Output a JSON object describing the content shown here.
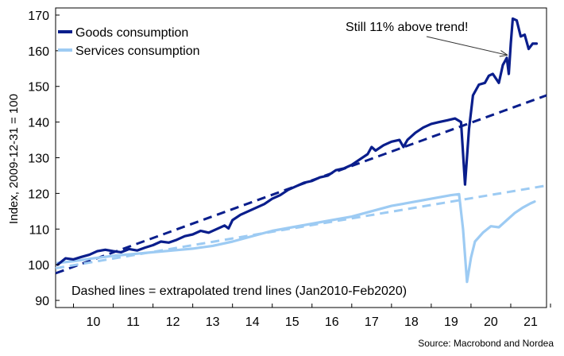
{
  "chart_data": {
    "type": "line",
    "title": "",
    "ylabel": "Index, 2009-12-31 = 100",
    "xlabel": "",
    "ylim": [
      88,
      172
    ],
    "yticks": [
      90,
      100,
      110,
      120,
      130,
      140,
      150,
      160,
      170
    ],
    "xlim": [
      2009.55,
      2021.9
    ],
    "xtick_positions": [
      2010,
      2011,
      2012,
      2013,
      2014,
      2015,
      2016,
      2017,
      2018,
      2019,
      2020,
      2021
    ],
    "xtick_labels": [
      "10",
      "11",
      "12",
      "13",
      "14",
      "15",
      "16",
      "17",
      "18",
      "19",
      "20",
      "21"
    ],
    "grid": false,
    "legend_position": "top-left",
    "colors": {
      "goods": "#0a1e8c",
      "services": "#9dcbf3"
    },
    "series": [
      {
        "name": "Goods consumption",
        "style": "solid",
        "color": "#0a1e8c",
        "points": [
          [
            2009.6,
            100
          ],
          [
            2009.8,
            101.8
          ],
          [
            2010.0,
            101.5
          ],
          [
            2010.2,
            102.2
          ],
          [
            2010.4,
            102.8
          ],
          [
            2010.6,
            103.8
          ],
          [
            2010.8,
            104.2
          ],
          [
            2011.0,
            103.8
          ],
          [
            2011.2,
            103.5
          ],
          [
            2011.4,
            104.4
          ],
          [
            2011.6,
            104.0
          ],
          [
            2011.8,
            104.8
          ],
          [
            2012.0,
            105.5
          ],
          [
            2012.2,
            106.5
          ],
          [
            2012.4,
            106.2
          ],
          [
            2012.6,
            107.0
          ],
          [
            2012.8,
            108.0
          ],
          [
            2013.0,
            108.5
          ],
          [
            2013.2,
            109.5
          ],
          [
            2013.4,
            109.0
          ],
          [
            2013.6,
            110.0
          ],
          [
            2013.8,
            111.0
          ],
          [
            2013.9,
            110.2
          ],
          [
            2014.0,
            112.5
          ],
          [
            2014.2,
            114.0
          ],
          [
            2014.4,
            115.0
          ],
          [
            2014.6,
            116.0
          ],
          [
            2014.8,
            117.0
          ],
          [
            2015.0,
            118.5
          ],
          [
            2015.2,
            119.5
          ],
          [
            2015.4,
            121.0
          ],
          [
            2015.6,
            122.0
          ],
          [
            2015.8,
            123.0
          ],
          [
            2016.0,
            123.5
          ],
          [
            2016.2,
            124.5
          ],
          [
            2016.4,
            125.0
          ],
          [
            2016.6,
            126.5
          ],
          [
            2016.8,
            127.0
          ],
          [
            2017.0,
            128.0
          ],
          [
            2017.2,
            129.5
          ],
          [
            2017.4,
            131.0
          ],
          [
            2017.5,
            133.0
          ],
          [
            2017.6,
            132.0
          ],
          [
            2017.8,
            133.5
          ],
          [
            2018.0,
            134.5
          ],
          [
            2018.2,
            135.0
          ],
          [
            2018.3,
            133.0
          ],
          [
            2018.4,
            135.0
          ],
          [
            2018.6,
            137.0
          ],
          [
            2018.8,
            138.5
          ],
          [
            2019.0,
            139.5
          ],
          [
            2019.2,
            140.0
          ],
          [
            2019.4,
            140.5
          ],
          [
            2019.6,
            141.0
          ],
          [
            2019.75,
            140.0
          ],
          [
            2019.85,
            122.5
          ],
          [
            2019.95,
            138.0
          ],
          [
            2020.05,
            147.5
          ],
          [
            2020.2,
            150.5
          ],
          [
            2020.35,
            151.0
          ],
          [
            2020.45,
            153.0
          ],
          [
            2020.55,
            153.5
          ],
          [
            2020.7,
            151.0
          ],
          [
            2020.8,
            156.0
          ],
          [
            2020.9,
            158.0
          ],
          [
            2020.95,
            153.5
          ],
          [
            2021.0,
            162.0
          ],
          [
            2021.05,
            169.0
          ],
          [
            2021.15,
            168.5
          ],
          [
            2021.25,
            164.0
          ],
          [
            2021.35,
            164.5
          ],
          [
            2021.45,
            160.5
          ],
          [
            2021.55,
            162.0
          ],
          [
            2021.65,
            162.0
          ]
        ]
      },
      {
        "name": "Services consumption",
        "style": "solid",
        "color": "#9dcbf3",
        "points": [
          [
            2009.6,
            100.5
          ],
          [
            2010.0,
            101.0
          ],
          [
            2010.5,
            101.8
          ],
          [
            2011.0,
            102.5
          ],
          [
            2011.5,
            103.0
          ],
          [
            2012.0,
            103.5
          ],
          [
            2012.5,
            104.0
          ],
          [
            2013.0,
            104.5
          ],
          [
            2013.5,
            105.3
          ],
          [
            2014.0,
            106.5
          ],
          [
            2014.5,
            108.0
          ],
          [
            2015.0,
            109.5
          ],
          [
            2015.5,
            110.5
          ],
          [
            2016.0,
            111.5
          ],
          [
            2016.5,
            112.5
          ],
          [
            2017.0,
            113.5
          ],
          [
            2017.5,
            115.0
          ],
          [
            2018.0,
            116.5
          ],
          [
            2018.5,
            117.5
          ],
          [
            2019.0,
            118.5
          ],
          [
            2019.5,
            119.5
          ],
          [
            2019.7,
            119.8
          ],
          [
            2019.8,
            110.0
          ],
          [
            2019.9,
            95.2
          ],
          [
            2020.0,
            102.0
          ],
          [
            2020.1,
            106.5
          ],
          [
            2020.3,
            109.0
          ],
          [
            2020.5,
            110.8
          ],
          [
            2020.7,
            110.5
          ],
          [
            2020.9,
            112.5
          ],
          [
            2021.1,
            114.5
          ],
          [
            2021.3,
            116.0
          ],
          [
            2021.5,
            117.2
          ],
          [
            2021.6,
            117.7
          ]
        ]
      },
      {
        "name": "",
        "style": "dashed",
        "color": "#0a1e8c",
        "points": [
          [
            2009.55,
            97.6
          ],
          [
            2021.9,
            147.5
          ]
        ]
      },
      {
        "name": "",
        "style": "dashed",
        "color": "#9dcbf3",
        "points": [
          [
            2009.55,
            99.0
          ],
          [
            2021.9,
            122.2
          ]
        ]
      }
    ],
    "legend": [
      {
        "label": "Goods consumption",
        "color": "#0a1e8c"
      },
      {
        "label": "Services consumption",
        "color": "#9dcbf3"
      }
    ],
    "annotations": [
      {
        "text": "Still 11% above trend!",
        "arrow_to": [
          2020.9,
          158.8
        ]
      },
      {
        "text": "Dashed lines = extrapolated trend lines (Jan2010-Feb2020)"
      }
    ],
    "source": "Source: Macrobond and Nordea"
  }
}
